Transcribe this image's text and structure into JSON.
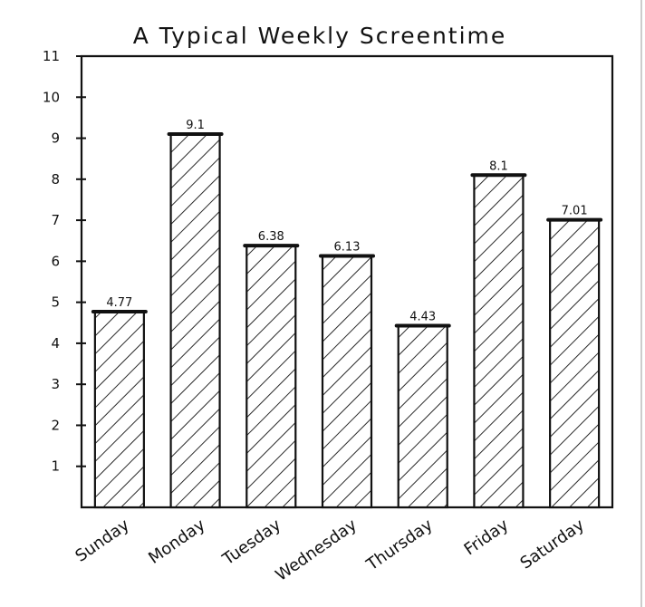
{
  "chart_data": {
    "type": "bar",
    "title": "A Typical Weekly Screentime",
    "xlabel": "",
    "ylabel": "",
    "categories": [
      "Sunday",
      "Monday",
      "Tuesday",
      "Wednesday",
      "Thursday",
      "Friday",
      "Saturday"
    ],
    "values": [
      4.77,
      9.1,
      6.38,
      6.13,
      4.43,
      8.1,
      7.01
    ],
    "value_labels": [
      "4.77",
      "9.1",
      "6.38",
      "6.13",
      "4.43",
      "8.1",
      "7.01"
    ],
    "ylim": [
      0,
      11
    ],
    "yticks": [
      1,
      2,
      3,
      4,
      5,
      6,
      7,
      8,
      9,
      10,
      11
    ],
    "grid": false,
    "legend": "none",
    "bar_fill": "diagonal-hatch",
    "colors": {
      "ink": "#111111",
      "background": "#ffffff"
    }
  }
}
